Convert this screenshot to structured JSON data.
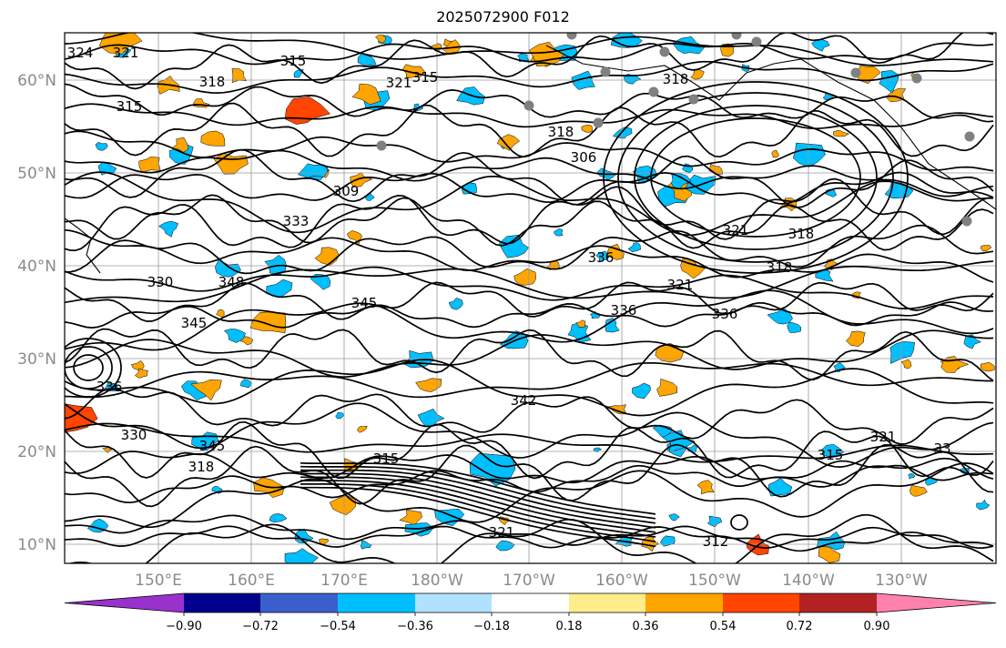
{
  "title": "2025072900 F012",
  "map": {
    "lat_labels": [
      "60°N",
      "50°N",
      "40°N",
      "30°N",
      "20°N",
      "10°N"
    ],
    "lon_labels": [
      "150°E",
      "160°E",
      "170°E",
      "180°W",
      "170°W",
      "160°W",
      "150°W",
      "140°W",
      "130°W"
    ],
    "contour_labels": [
      "324",
      "321",
      "315",
      "318",
      "315",
      "321",
      "315",
      "318",
      "318",
      "306",
      "309",
      "321",
      "318",
      "318",
      "321",
      "336",
      "336",
      "336",
      "333",
      "330",
      "348",
      "345",
      "345",
      "342",
      "336",
      "330",
      "345",
      "318",
      "315",
      "321",
      "312",
      "315",
      "321",
      "33"
    ],
    "contour_color": "#000000",
    "station_color": "#808080"
  },
  "colorbar": {
    "ticks": [
      "−0.90",
      "−0.72",
      "−0.54",
      "−0.36",
      "−0.18",
      "0.18",
      "0.36",
      "0.54",
      "0.72",
      "0.90"
    ],
    "colors": [
      "#9932cc",
      "#00008b",
      "#3a5fcd",
      "#00bfff",
      "#b0e2ff",
      "#ffffff",
      "#ffec8b",
      "#ffa500",
      "#ff4500",
      "#b22222",
      "#ff82ab"
    ]
  }
}
